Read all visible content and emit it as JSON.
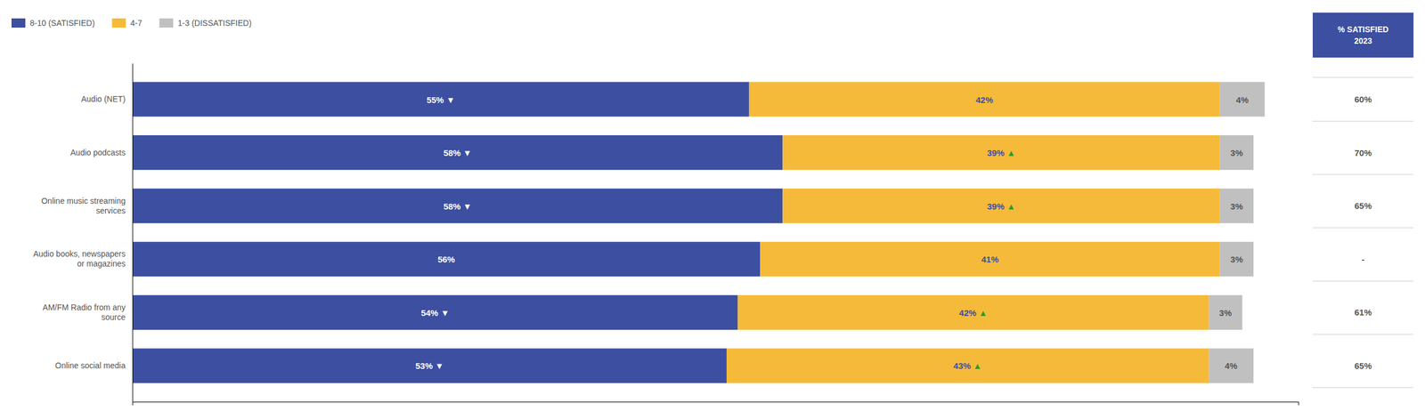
{
  "chart_data": {
    "type": "bar",
    "orientation": "horizontal",
    "stacked": true,
    "data_labels": true,
    "tick_labels": "y",
    "grid": false,
    "legend": "top-left",
    "categories": [
      "Audio (NET)",
      "Audio podcasts",
      "Online music streaming\nservices",
      "Audio books, newspapers\nor magazines",
      "AM/FM Radio from any\nsource",
      "Online social media"
    ],
    "xlim": [
      0,
      104
    ],
    "series": [
      {
        "name": "8-10 (SATISFIED)",
        "color": "#3d4fa0",
        "values": [
          55,
          58,
          58,
          56,
          54,
          53
        ],
        "value_labels": [
          "55% ▼",
          "58% ▼",
          "58% ▼",
          "56%",
          "54% ▼",
          "53% ▼"
        ]
      },
      {
        "name": "4-7",
        "color": "#f5ba3a",
        "values": [
          42,
          39,
          39,
          41,
          42,
          43
        ],
        "value_labels": [
          "42%",
          "39% ▲",
          "39% ▲",
          "41%",
          "42% ▲",
          "43% ▲"
        ]
      },
      {
        "name": "1-3 (DISSATISFIED)",
        "color": "#c0c0c0",
        "values": [
          4,
          3,
          3,
          3,
          3,
          4
        ],
        "value_labels": [
          "4%",
          "3%",
          "3%",
          "3%",
          "3%",
          "4%"
        ]
      }
    ],
    "comparison": {
      "title": "% SATISFIED\n2023",
      "labels": [
        "60%",
        "70%",
        "65%",
        "-",
        "61%",
        "65%"
      ]
    }
  }
}
